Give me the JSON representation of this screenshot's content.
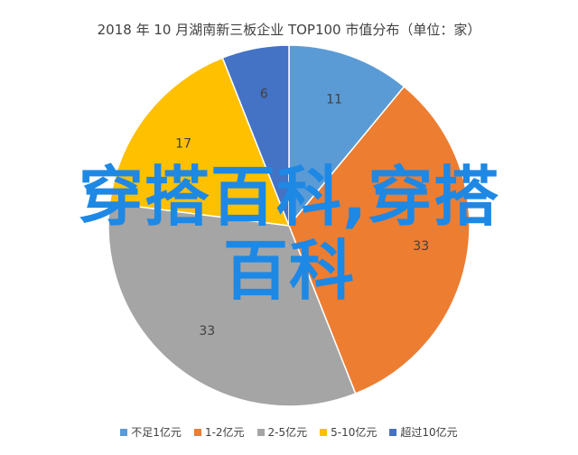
{
  "chart_data": {
    "type": "pie",
    "title": "2018 年 10 月湖南新三板企业 TOP100 市值分布（单位：家）",
    "categories": [
      "不足1亿元",
      "1-2亿元",
      "2-5亿元",
      "5-10亿元",
      "超过10亿元"
    ],
    "values": [
      11,
      33,
      33,
      17,
      6
    ],
    "colors": [
      "#5b9bd5",
      "#ed7d31",
      "#a5a5a5",
      "#ffc000",
      "#4472c4"
    ],
    "legend_position": "bottom",
    "start_angle": "12 o'clock",
    "direction": "clockwise",
    "data_order_note": "slices drawn clockwise from top in category order"
  },
  "overlay": {
    "line1": "穿搭百科,穿搭",
    "line2": "百科",
    "color": "#1e88e5"
  }
}
